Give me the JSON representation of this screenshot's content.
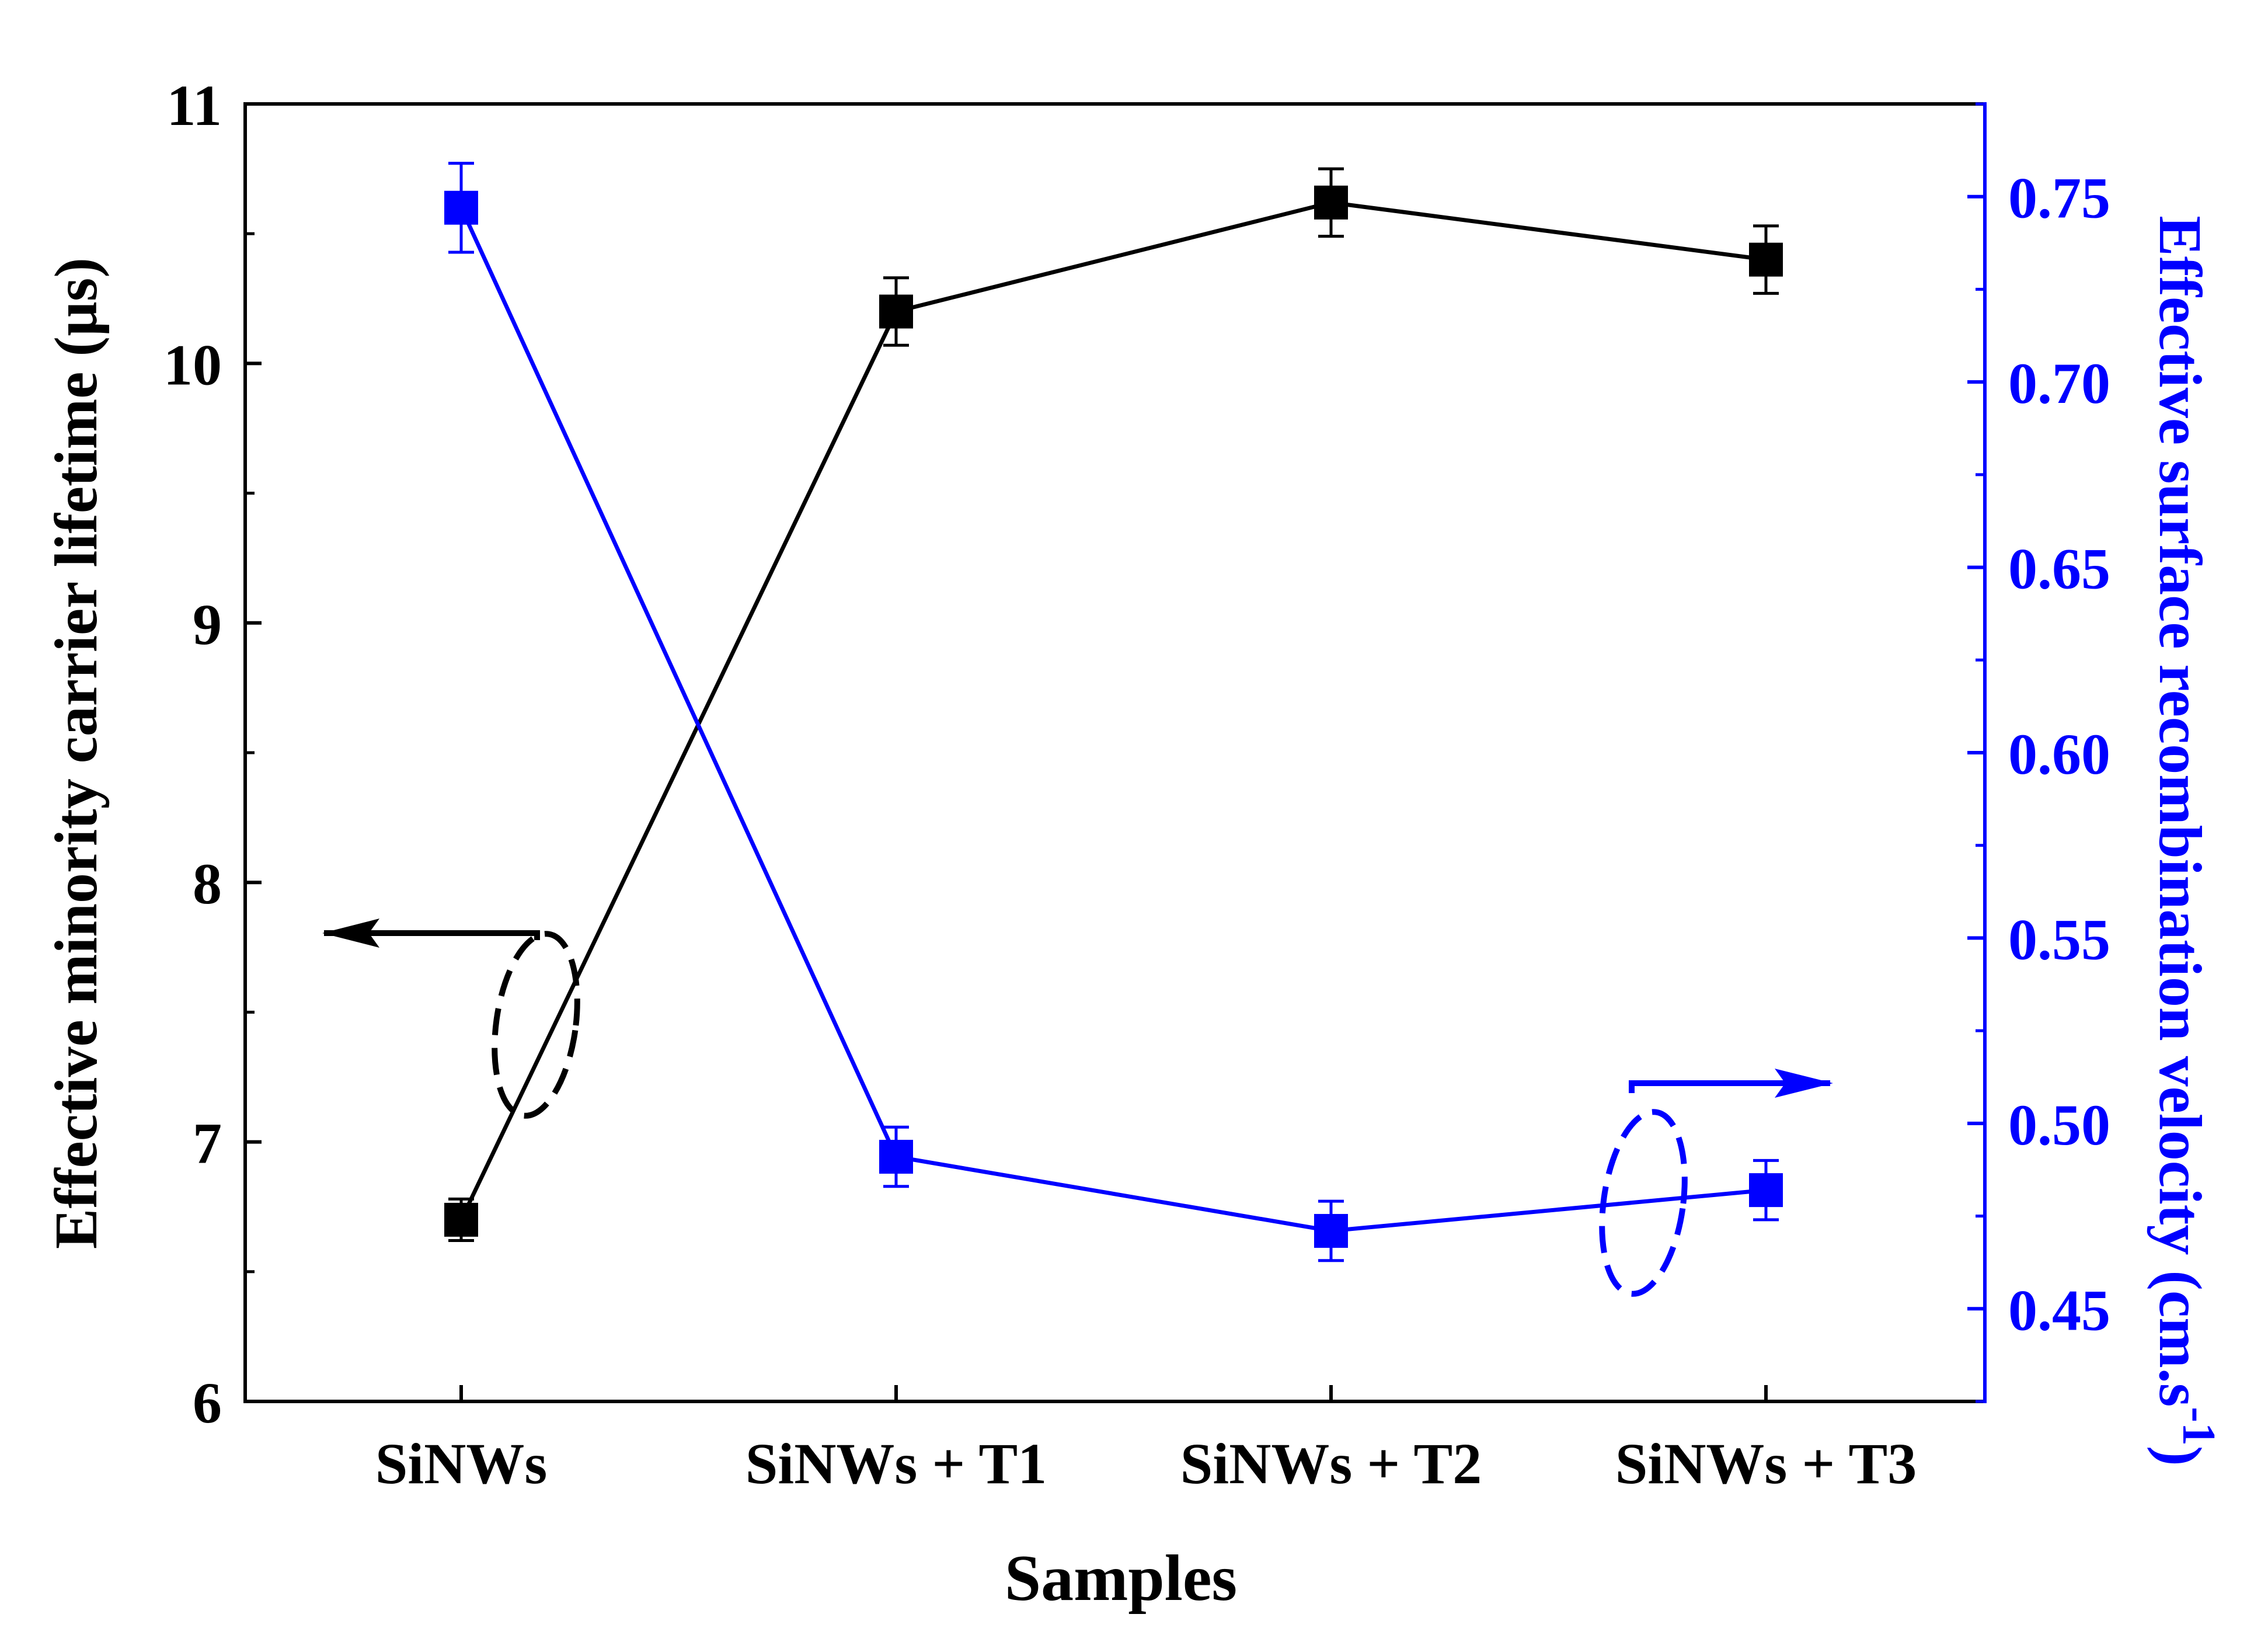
{
  "chart_data": {
    "type": "line",
    "categories": [
      "SiNWs",
      "SiNWs + T1",
      "SiNWs + T2",
      "SiNWs + T3"
    ],
    "xlabel": "Samples",
    "left_axis": {
      "label": "Effective minority carrier lifetime (µs)",
      "ylim": [
        6,
        11
      ],
      "ticks": [
        "6",
        "7",
        "8",
        "9",
        "10",
        "11"
      ],
      "color": "#000000"
    },
    "right_axis": {
      "label_main": "Effective surface recombination velocity (cm.s",
      "label_sup": "-1",
      "label_close": ")",
      "ylim": [
        0.425,
        0.775
      ],
      "ticks": [
        "0.45",
        "0.50",
        "0.55",
        "0.60",
        "0.65",
        "0.70",
        "0.75"
      ],
      "color": "#0000ff"
    },
    "series": [
      {
        "name": "Effective minority carrier lifetime",
        "axis": "left",
        "color": "#000000",
        "values": [
          6.7,
          10.2,
          10.62,
          10.4
        ],
        "errors": [
          0.08,
          0.13,
          0.13,
          0.13
        ]
      },
      {
        "name": "Effective surface recombination velocity",
        "axis": "right",
        "color": "#0000ff",
        "values": [
          0.747,
          0.491,
          0.471,
          0.482
        ],
        "errors": [
          0.012,
          0.008,
          0.008,
          0.008
        ]
      }
    ],
    "annotations": [
      {
        "type": "arrow",
        "direction": "left",
        "series": "left",
        "color": "#000000"
      },
      {
        "type": "arrow",
        "direction": "right",
        "series": "right",
        "color": "#0000ff"
      }
    ]
  }
}
